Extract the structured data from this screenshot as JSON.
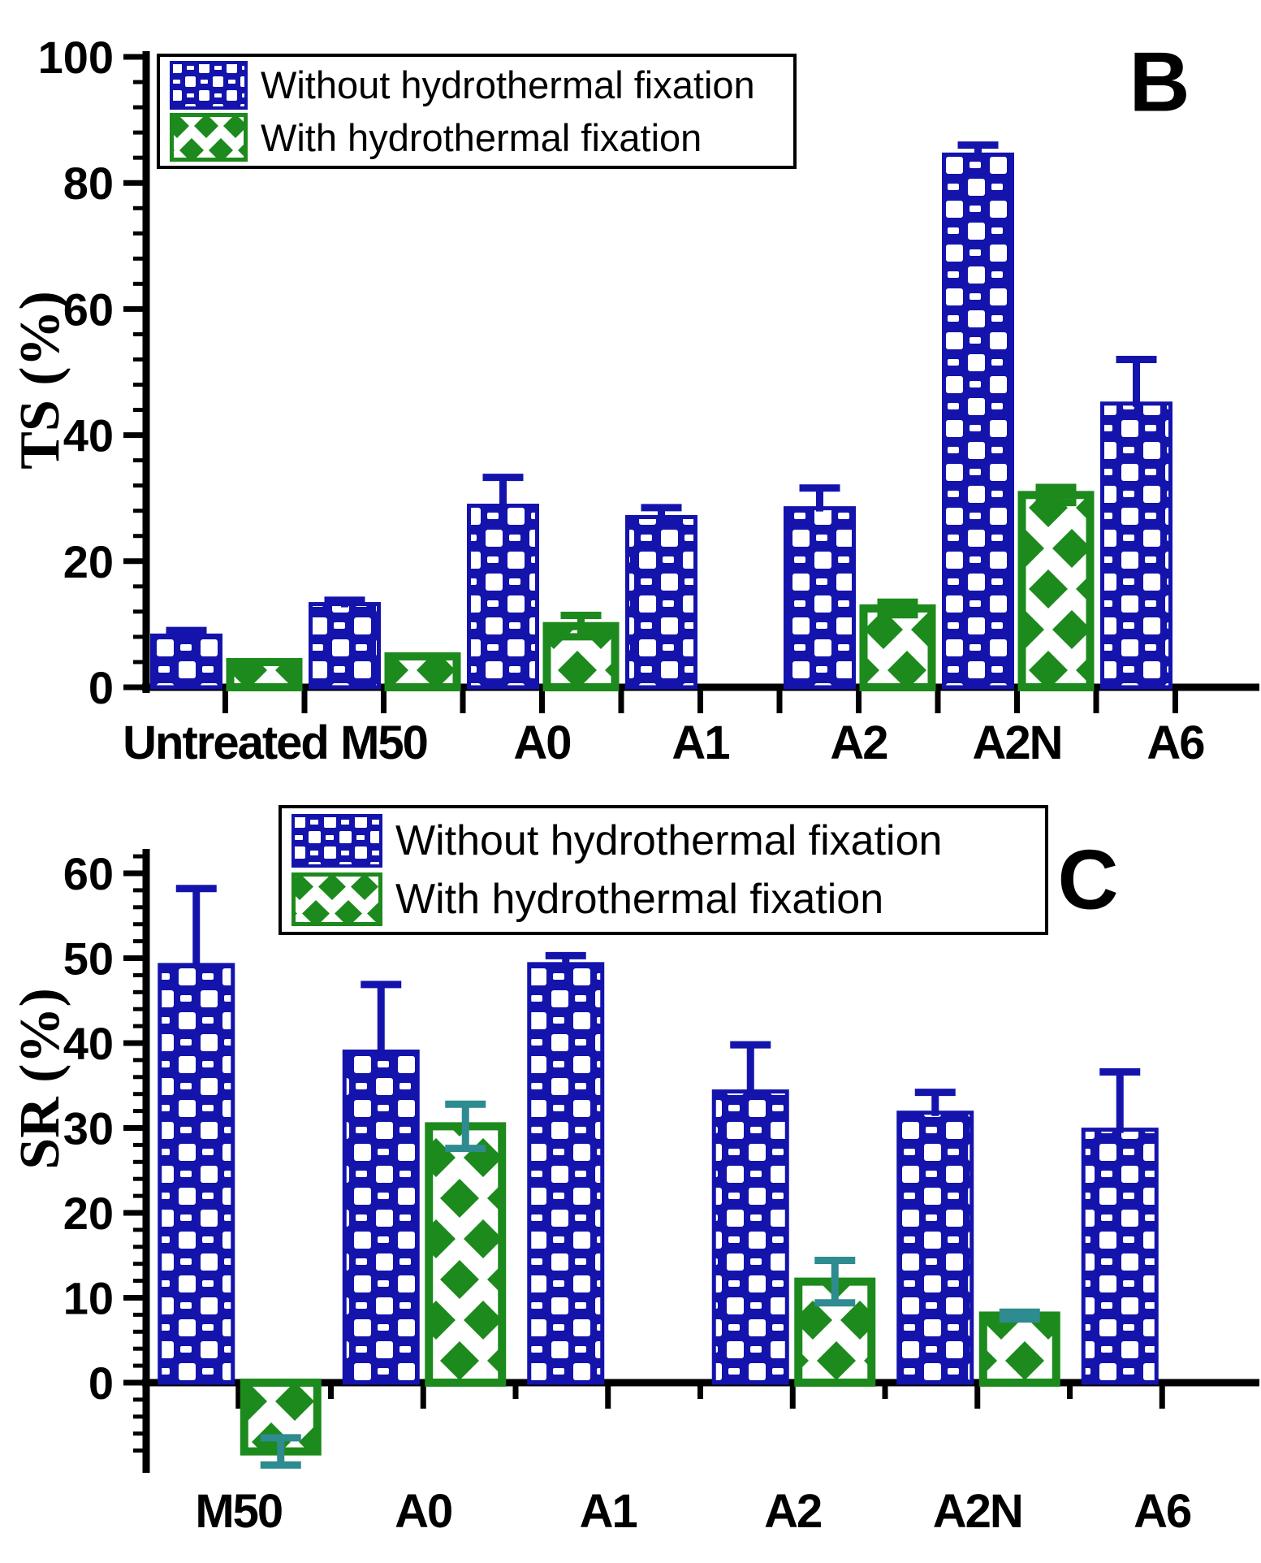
{
  "figure": {
    "background": "#ffffff",
    "colors": {
      "without": "#1414ad",
      "with": "#1c8a1c",
      "teal_error": "#2e8b8f",
      "axis": "#000000"
    }
  },
  "chart_data": [
    {
      "type": "bar",
      "panel_label": "B",
      "ylabel": "TS (%)",
      "categories": [
        "Untreated",
        "M50",
        "A0",
        "A1",
        "A2",
        "A2N",
        "A6"
      ],
      "ylim": [
        0,
        100
      ],
      "yticks": [
        0,
        20,
        40,
        60,
        80,
        100
      ],
      "minor_tick_step": 4,
      "grid": false,
      "legend_position": "top-left",
      "series": [
        {
          "name": "Without hydrothermal fixation",
          "pattern": "checker",
          "color": "#1414ad",
          "error_color": "#1414ad",
          "values": [
            8.2,
            13.2,
            28.8,
            27.0,
            28.4,
            84.5,
            45.0
          ],
          "errors": [
            0.8,
            0.6,
            4.5,
            1.5,
            3.2,
            1.5,
            7.0
          ]
        },
        {
          "name": "With hydrothermal fixation",
          "pattern": "diamond",
          "color": "#1c8a1c",
          "error_color": "#1c8a1c",
          "values": [
            4.0,
            4.9,
            9.7,
            null,
            12.5,
            30.5,
            null
          ],
          "errors": [
            null,
            null,
            1.7,
            null,
            1.0,
            1.2,
            null
          ]
        }
      ]
    },
    {
      "type": "bar",
      "panel_label": "C",
      "ylabel": "SR (%)",
      "categories": [
        "M50",
        "A0",
        "A1",
        "A2",
        "A2N",
        "A6"
      ],
      "ylim": [
        -10.5,
        62
      ],
      "yticks": [
        0,
        10,
        20,
        30,
        40,
        50,
        60
      ],
      "minor_tick_step": 2,
      "grid": false,
      "legend_position": "top-left",
      "series": [
        {
          "name": "Without hydrothermal fixation",
          "pattern": "checker",
          "color": "#1414ad",
          "error_color": "#1414ad",
          "values": [
            49.2,
            39.0,
            49.3,
            34.3,
            31.8,
            29.8
          ],
          "errors": [
            9.0,
            7.9,
            1.0,
            5.5,
            2.4,
            6.8
          ]
        },
        {
          "name": "With hydrothermal fixation",
          "pattern": "diamond",
          "color": "#1c8a1c",
          "error_color": "#2e8b8f",
          "values": [
            -8.1,
            30.2,
            null,
            11.9,
            7.9,
            null
          ],
          "errors": [
            1.6,
            2.6,
            null,
            2.5,
            0.4,
            null
          ]
        }
      ]
    }
  ]
}
